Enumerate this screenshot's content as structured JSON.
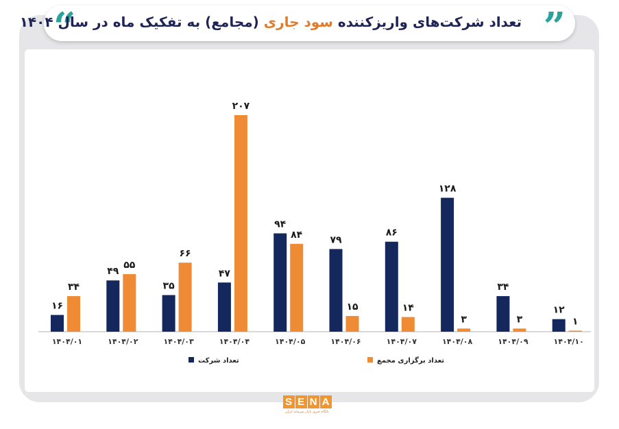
{
  "title": {
    "part1": "تعداد شرکت‌های واریزکننده",
    "highlight": "سود جاری",
    "part2": "(مجامع) به تفکیک ماه در سال ۱۴۰۴"
  },
  "colors": {
    "navy": "#14285e",
    "orange": "#ef8a35",
    "teal": "#2ba39a",
    "frame": "#e6e6e8"
  },
  "logo": {
    "letters": [
      "S",
      "E",
      "N",
      "A"
    ],
    "subtitle": "پایگاه خبری بازار سرمایه ایران"
  },
  "chart_data": {
    "type": "bar",
    "categories": [
      "۱۴۰۴/۰۱",
      "۱۴۰۴/۰۲",
      "۱۴۰۴/۰۳",
      "۱۴۰۴/۰۴",
      "۱۴۰۴/۰۵",
      "۱۴۰۴/۰۶",
      "۱۴۰۴/۰۷",
      "۱۴۰۴/۰۸",
      "۱۴۰۴/۰۹",
      "۱۴۰۴/۱۰"
    ],
    "series": [
      {
        "name": "تعداد شرکت",
        "color": "#14285e",
        "values": [
          16,
          49,
          35,
          47,
          94,
          79,
          86,
          128,
          34,
          12
        ],
        "labels": [
          "۱۶",
          "۴۹",
          "۳۵",
          "۴۷",
          "۹۴",
          "۷۹",
          "۸۶",
          "۱۲۸",
          "۳۴",
          "۱۲"
        ]
      },
      {
        "name": "تعداد برگزاری مجمع",
        "color": "#ef8a35",
        "values": [
          34,
          55,
          66,
          207,
          84,
          15,
          14,
          3,
          3,
          1
        ],
        "labels": [
          "۳۴",
          "۵۵",
          "۶۶",
          "۲۰۷",
          "۸۴",
          "۱۵",
          "۱۴",
          "۳",
          "۳",
          "۱"
        ]
      }
    ],
    "ylim": [
      0,
      207
    ],
    "grid": false,
    "legend_position": "bottom"
  }
}
